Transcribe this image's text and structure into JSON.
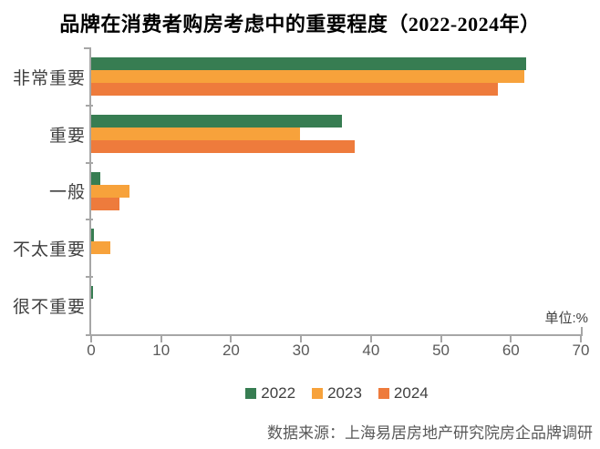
{
  "title": "品牌在消费者购房考虑中的重要程度（2022-2024年）",
  "unit_label": "单位:%",
  "source": {
    "text": "数据来源：上海易居房地产研究院房企品牌调研"
  },
  "chart_data": {
    "type": "bar",
    "orientation": "horizontal",
    "title": "品牌在消费者购房考虑中的重要程度（2022-2024年）",
    "categories": [
      "非常重要",
      "重要",
      "一般",
      "不太重要",
      "很不重要"
    ],
    "series": [
      {
        "name": "2022",
        "color": "#377D52",
        "values": [
          62.2,
          35.8,
          1.3,
          0.4,
          0.3
        ]
      },
      {
        "name": "2023",
        "color": "#F7A23B",
        "values": [
          61.9,
          29.8,
          5.5,
          2.8,
          0
        ]
      },
      {
        "name": "2024",
        "color": "#EE7B3C",
        "values": [
          58.2,
          37.7,
          4.1,
          0,
          0
        ]
      }
    ],
    "xlim": [
      0,
      70
    ],
    "x_ticks": [
      0,
      10,
      20,
      30,
      40,
      50,
      60,
      70
    ],
    "unit_label": "单位:%",
    "legend_position": "bottom",
    "grid": false,
    "axis_color": "#A6A6A6"
  }
}
